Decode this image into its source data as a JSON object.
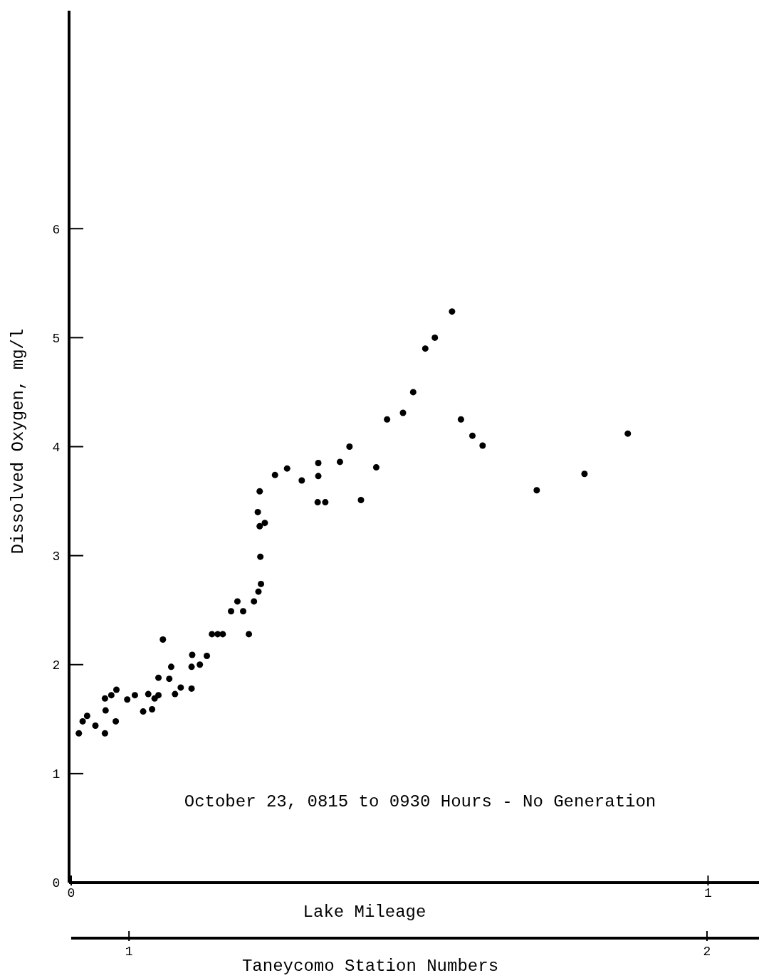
{
  "chart_data": {
    "type": "scatter",
    "xlabel": "Lake Mileage",
    "ylabel": "Dissolved Oxygen, mg/l",
    "x2label": "Taneycomo Station Numbers",
    "annotations": [
      "October 23, 0815 to 0930 Hours - No Generation"
    ],
    "x": [
      0.012,
      0.018,
      0.025,
      0.038,
      0.053,
      0.054,
      0.053,
      0.063,
      0.071,
      0.07,
      0.088,
      0.1,
      0.113,
      0.121,
      0.127,
      0.131,
      0.137,
      0.137,
      0.144,
      0.154,
      0.157,
      0.163,
      0.172,
      0.189,
      0.189,
      0.19,
      0.202,
      0.213,
      0.221,
      0.23,
      0.238,
      0.251,
      0.261,
      0.27,
      0.279,
      0.287,
      0.294,
      0.298,
      0.297,
      0.296,
      0.304,
      0.293,
      0.296,
      0.32,
      0.339,
      0.362,
      0.388,
      0.388,
      0.387,
      0.399,
      0.422,
      0.437,
      0.455,
      0.479,
      0.496,
      0.521,
      0.537,
      0.556,
      0.571,
      0.598,
      0.612,
      0.63,
      0.646,
      0.731,
      0.806,
      0.874
    ],
    "values": [
      1.37,
      1.48,
      1.53,
      1.44,
      1.69,
      1.58,
      1.37,
      1.72,
      1.77,
      1.48,
      1.68,
      1.72,
      1.57,
      1.73,
      1.59,
      1.69,
      1.72,
      1.88,
      2.23,
      1.87,
      1.98,
      1.73,
      1.79,
      1.78,
      1.98,
      2.09,
      2.0,
      2.08,
      2.28,
      2.28,
      2.28,
      2.49,
      2.58,
      2.49,
      2.28,
      2.58,
      2.67,
      2.74,
      2.99,
      3.27,
      3.3,
      3.4,
      3.59,
      3.74,
      3.8,
      3.69,
      3.85,
      3.73,
      3.49,
      3.49,
      3.86,
      4.0,
      3.51,
      3.81,
      4.25,
      4.31,
      4.5,
      4.9,
      5.0,
      5.24,
      4.25,
      4.1,
      4.01,
      3.6,
      3.75,
      4.12
    ],
    "color": "#000000",
    "marker": "circle",
    "grid": false,
    "xlim": [
      0,
      1.08
    ],
    "xticks": [
      0,
      1
    ],
    "ylim": [
      0,
      8
    ],
    "yticks": [
      0,
      1,
      2,
      3,
      4,
      5,
      6
    ],
    "x2lim": [
      0.9,
      2.09
    ],
    "x2ticks": [
      1,
      2
    ]
  }
}
